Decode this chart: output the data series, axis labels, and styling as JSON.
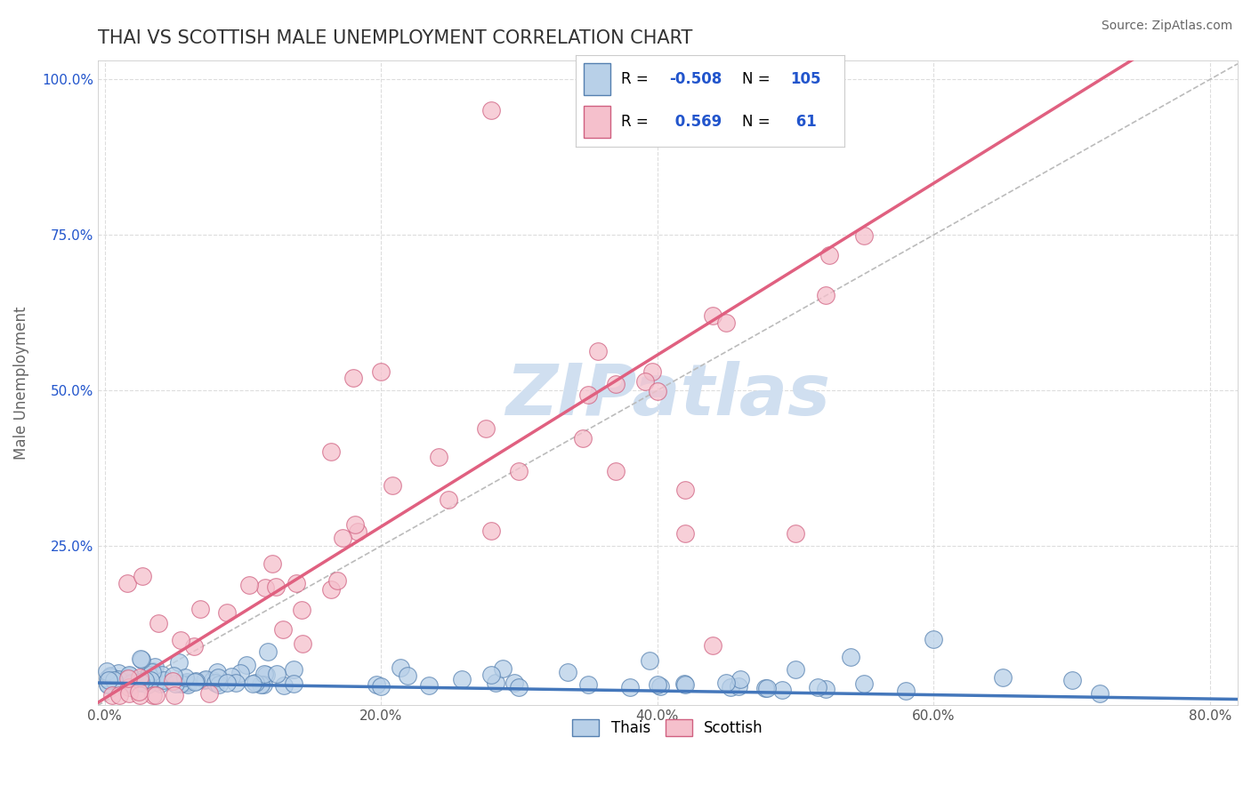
{
  "title": "THAI VS SCOTTISH MALE UNEMPLOYMENT CORRELATION CHART",
  "source": "Source: ZipAtlas.com",
  "ylabel": "Male Unemployment",
  "xlim": [
    -0.005,
    0.82
  ],
  "ylim": [
    -0.005,
    1.03
  ],
  "xtick_labels": [
    "0.0%",
    "20.0%",
    "40.0%",
    "60.0%",
    "80.0%"
  ],
  "xtick_vals": [
    0.0,
    0.2,
    0.4,
    0.6,
    0.8
  ],
  "ytick_labels": [
    "25.0%",
    "50.0%",
    "75.0%",
    "100.0%"
  ],
  "ytick_vals": [
    0.25,
    0.5,
    0.75,
    1.0
  ],
  "blue_face_color": "#b8d0e8",
  "blue_edge_color": "#5580b0",
  "pink_face_color": "#f5c0cc",
  "pink_edge_color": "#d06080",
  "legend_R_color": "#2255cc",
  "legend_N_color": "#2255cc",
  "watermark": "ZIPatlas",
  "watermark_color": "#d0dff0",
  "title_color": "#333333",
  "grid_color": "#dddddd",
  "grid_linestyle": "--",
  "pink_reg_color": "#e06080",
  "blue_reg_color": "#4477bb",
  "diag_color": "#bbbbbb",
  "blue_reg_slope": -0.032,
  "blue_reg_intercept": 0.03,
  "pink_reg_slope": 1.38,
  "pink_reg_intercept": 0.005,
  "diag_slope": 1.25,
  "diag_intercept": 0.0,
  "bottom_legend_labels": [
    "Thais",
    "Scottish"
  ]
}
